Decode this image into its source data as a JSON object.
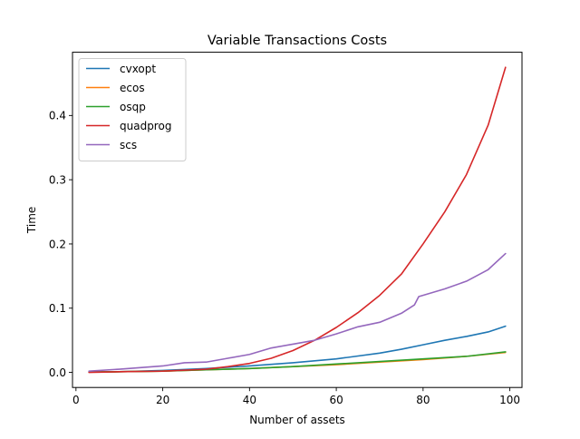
{
  "chart_data": {
    "type": "line",
    "title": "Variable Transactions Costs",
    "xlabel": "Number of assets",
    "ylabel": "Time",
    "xlim": [
      -0.8,
      102.8
    ],
    "ylim": [
      -0.0235,
      0.4985
    ],
    "xticks": [
      0,
      20,
      40,
      60,
      80,
      100
    ],
    "yticks": [
      0.0,
      0.1,
      0.2,
      0.3,
      0.4
    ],
    "xtick_labels": [
      "0",
      "20",
      "40",
      "60",
      "80",
      "100"
    ],
    "ytick_labels": [
      "0.0",
      "0.1",
      "0.2",
      "0.3",
      "0.4"
    ],
    "legend_position": "upper-left",
    "grid": false,
    "series": [
      {
        "name": "cvxopt",
        "color": "#1f77b4",
        "x": [
          3,
          10,
          20,
          30,
          40,
          50,
          60,
          70,
          75,
          80,
          85,
          90,
          95,
          99
        ],
        "y": [
          0.001,
          0.001,
          0.003,
          0.006,
          0.01,
          0.015,
          0.021,
          0.03,
          0.036,
          0.043,
          0.05,
          0.056,
          0.063,
          0.072
        ]
      },
      {
        "name": "ecos",
        "color": "#ff7f0e",
        "x": [
          3,
          10,
          20,
          30,
          40,
          50,
          60,
          70,
          80,
          90,
          99
        ],
        "y": [
          0.0005,
          0.001,
          0.002,
          0.004,
          0.006,
          0.009,
          0.012,
          0.016,
          0.02,
          0.025,
          0.031
        ]
      },
      {
        "name": "osqp",
        "color": "#2ca02c",
        "x": [
          3,
          10,
          20,
          30,
          40,
          50,
          60,
          70,
          80,
          90,
          99
        ],
        "y": [
          0.0005,
          0.001,
          0.002,
          0.004,
          0.006,
          0.009,
          0.013,
          0.017,
          0.021,
          0.025,
          0.032
        ]
      },
      {
        "name": "quadprog",
        "color": "#d62728",
        "x": [
          3,
          10,
          20,
          30,
          35,
          40,
          45,
          50,
          55,
          60,
          65,
          70,
          75,
          80,
          85,
          90,
          95,
          99
        ],
        "y": [
          0.0,
          0.001,
          0.002,
          0.005,
          0.009,
          0.014,
          0.022,
          0.034,
          0.05,
          0.07,
          0.093,
          0.12,
          0.153,
          0.2,
          0.25,
          0.308,
          0.385,
          0.475
        ]
      },
      {
        "name": "scs",
        "color": "#9467bd",
        "x": [
          3,
          10,
          20,
          25,
          30,
          35,
          40,
          45,
          50,
          55,
          60,
          65,
          70,
          75,
          78,
          79,
          85,
          90,
          95,
          99
        ],
        "y": [
          0.002,
          0.005,
          0.01,
          0.015,
          0.016,
          0.022,
          0.028,
          0.038,
          0.044,
          0.05,
          0.06,
          0.071,
          0.078,
          0.092,
          0.105,
          0.118,
          0.13,
          0.142,
          0.16,
          0.185
        ]
      }
    ]
  }
}
